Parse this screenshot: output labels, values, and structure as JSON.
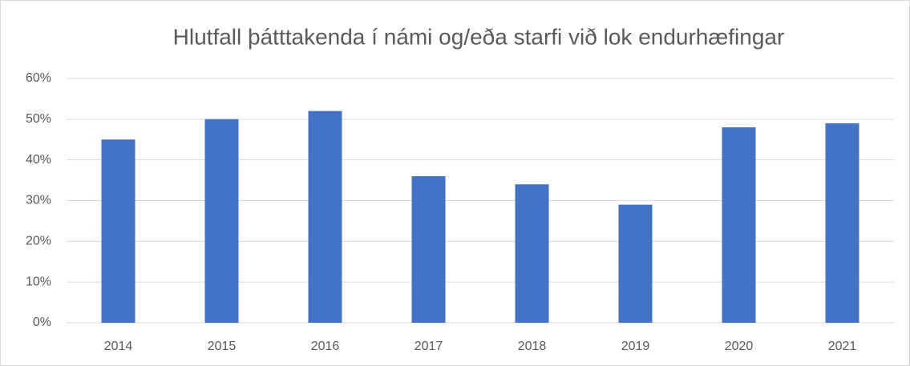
{
  "chart_data": {
    "type": "bar",
    "title": "Hlutfall þátttakenda í námi og/eða starfi við lok endurhæfingar",
    "categories": [
      "2014",
      "2015",
      "2016",
      "2017",
      "2018",
      "2019",
      "2020",
      "2021"
    ],
    "values": [
      45,
      50,
      52,
      36,
      34,
      29,
      48,
      49
    ],
    "color": "#4472c4",
    "ylim": [
      0,
      60
    ],
    "yticks": [
      {
        "value": 0,
        "label": "0%"
      },
      {
        "value": 10,
        "label": "10%"
      },
      {
        "value": 20,
        "label": "20%"
      },
      {
        "value": 30,
        "label": "30%"
      },
      {
        "value": 40,
        "label": "40%"
      },
      {
        "value": 50,
        "label": "50%"
      },
      {
        "value": 60,
        "label": "60%"
      }
    ],
    "grid": true
  }
}
